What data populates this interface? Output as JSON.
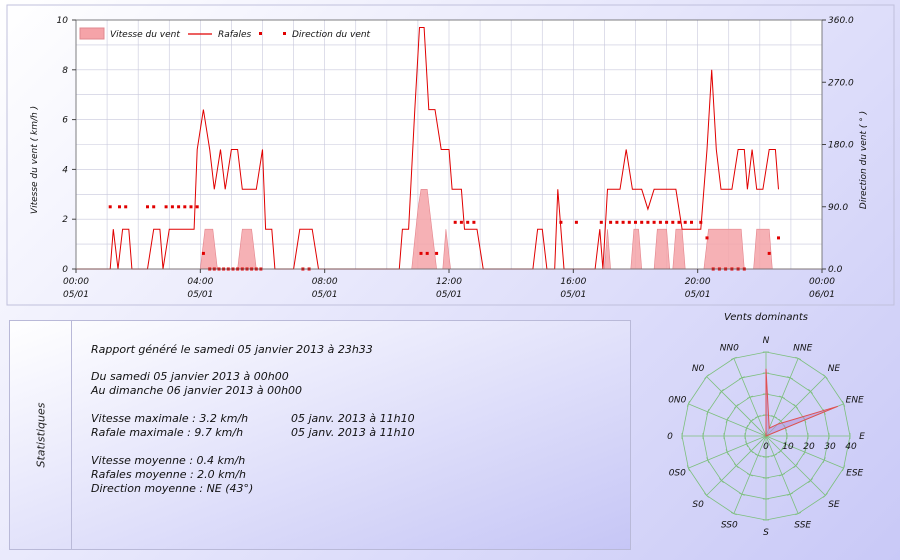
{
  "colors": {
    "gust": "#e00000",
    "speed_fill": "#f5a3a8",
    "dir": "#e00000",
    "rose_fill": "#b090d8",
    "grid": "#c8c8dc"
  },
  "chart_data": [
    {
      "type": "line",
      "legend": {
        "speed": "Vitesse du vent",
        "gust": "Rafales",
        "dir": "Direction du vent",
        "placement": "top-left"
      },
      "ylabel_left": "Vitesse du vent ( km/h )",
      "ylabel_right": "Direction du vent ( ° )",
      "ylim_left": [
        0,
        10
      ],
      "ylim_right": [
        0,
        360
      ],
      "yticks_left": [
        "0",
        "2",
        "4",
        "6",
        "8",
        "10"
      ],
      "yticks_right": [
        "0.0",
        "90.0",
        "180.0",
        "270.0",
        "360.0"
      ],
      "xlim_hours": [
        0,
        24
      ],
      "xticks": [
        {
          "time": "00:00",
          "date": "05/01"
        },
        {
          "time": "04:00",
          "date": "05/01"
        },
        {
          "time": "08:00",
          "date": "05/01"
        },
        {
          "time": "12:00",
          "date": "05/01"
        },
        {
          "time": "16:00",
          "date": "05/01"
        },
        {
          "time": "20:00",
          "date": "05/01"
        },
        {
          "time": "00:00",
          "date": "06/01"
        }
      ],
      "grid": true,
      "series": [
        {
          "name": "Rafales",
          "kind": "line",
          "points": [
            [
              0,
              0
            ],
            [
              1.1,
              0
            ],
            [
              1.2,
              1.6
            ],
            [
              1.35,
              0
            ],
            [
              1.5,
              1.6
            ],
            [
              1.7,
              1.6
            ],
            [
              1.8,
              0
            ],
            [
              2.3,
              0
            ],
            [
              2.5,
              1.6
            ],
            [
              2.7,
              1.6
            ],
            [
              2.8,
              0
            ],
            [
              3,
              1.6
            ],
            [
              3.8,
              1.6
            ],
            [
              3.9,
              4.8
            ],
            [
              4.1,
              6.4
            ],
            [
              4.3,
              4.8
            ],
            [
              4.45,
              3.2
            ],
            [
              4.65,
              4.8
            ],
            [
              4.8,
              3.2
            ],
            [
              5,
              4.8
            ],
            [
              5.2,
              4.8
            ],
            [
              5.35,
              3.2
            ],
            [
              5.8,
              3.2
            ],
            [
              6,
              4.8
            ],
            [
              6.1,
              1.6
            ],
            [
              6.3,
              1.6
            ],
            [
              6.4,
              0
            ],
            [
              7,
              0
            ],
            [
              7.2,
              1.6
            ],
            [
              7.6,
              1.6
            ],
            [
              7.8,
              0
            ],
            [
              10.4,
              0
            ],
            [
              10.5,
              1.6
            ],
            [
              10.7,
              1.6
            ],
            [
              10.9,
              6.4
            ],
            [
              11.05,
              9.7
            ],
            [
              11.2,
              9.7
            ],
            [
              11.35,
              6.4
            ],
            [
              11.55,
              6.4
            ],
            [
              11.75,
              4.8
            ],
            [
              12,
              4.8
            ],
            [
              12.1,
              3.2
            ],
            [
              12.4,
              3.2
            ],
            [
              12.5,
              1.6
            ],
            [
              12.9,
              1.6
            ],
            [
              13.1,
              0
            ],
            [
              14.7,
              0
            ],
            [
              14.85,
              1.6
            ],
            [
              15,
              1.6
            ],
            [
              15.15,
              0
            ],
            [
              15.4,
              0
            ],
            [
              15.5,
              3.2
            ],
            [
              15.7,
              0
            ],
            [
              16.7,
              0
            ],
            [
              16.85,
              1.6
            ],
            [
              16.95,
              0
            ],
            [
              17.1,
              3.2
            ],
            [
              17.5,
              3.2
            ],
            [
              17.7,
              4.8
            ],
            [
              17.9,
              3.2
            ],
            [
              18.2,
              3.2
            ],
            [
              18.4,
              2.4
            ],
            [
              18.6,
              3.2
            ],
            [
              19.3,
              3.2
            ],
            [
              19.5,
              1.6
            ],
            [
              20.1,
              1.6
            ],
            [
              20.3,
              4.8
            ],
            [
              20.45,
              8
            ],
            [
              20.6,
              4.8
            ],
            [
              20.75,
              3.2
            ],
            [
              21.1,
              3.2
            ],
            [
              21.3,
              4.8
            ],
            [
              21.5,
              4.8
            ],
            [
              21.6,
              3.2
            ],
            [
              21.75,
              4.8
            ],
            [
              21.9,
              3.2
            ],
            [
              22.1,
              3.2
            ],
            [
              22.3,
              4.8
            ],
            [
              22.5,
              4.8
            ],
            [
              22.6,
              3.2
            ]
          ]
        },
        {
          "name": "Vitesse du vent",
          "kind": "area",
          "points": [
            [
              0,
              0
            ],
            [
              4,
              0
            ],
            [
              4.15,
              1.6
            ],
            [
              4.4,
              1.6
            ],
            [
              4.55,
              0
            ],
            [
              5.2,
              0
            ],
            [
              5.35,
              1.6
            ],
            [
              5.65,
              1.6
            ],
            [
              5.8,
              0
            ],
            [
              10.8,
              0
            ],
            [
              11,
              2.4
            ],
            [
              11.1,
              3.2
            ],
            [
              11.3,
              3.2
            ],
            [
              11.45,
              1.6
            ],
            [
              11.6,
              0
            ],
            [
              11.8,
              0
            ],
            [
              11.9,
              1.6
            ],
            [
              12.05,
              0
            ],
            [
              17,
              0
            ],
            [
              17.1,
              1.6
            ],
            [
              17.2,
              0
            ],
            [
              17.85,
              0
            ],
            [
              17.95,
              1.6
            ],
            [
              18.1,
              1.6
            ],
            [
              18.2,
              0
            ],
            [
              18.6,
              0
            ],
            [
              18.7,
              1.6
            ],
            [
              19,
              1.6
            ],
            [
              19.1,
              0
            ],
            [
              19.2,
              0
            ],
            [
              19.3,
              1.6
            ],
            [
              19.5,
              1.6
            ],
            [
              19.6,
              0
            ],
            [
              20.2,
              0
            ],
            [
              20.35,
              1.6
            ],
            [
              21.4,
              1.6
            ],
            [
              21.5,
              0
            ],
            [
              21.8,
              0
            ],
            [
              21.9,
              1.6
            ],
            [
              22.3,
              1.6
            ],
            [
              22.4,
              0
            ],
            [
              24,
              0
            ]
          ]
        },
        {
          "name": "Direction du vent",
          "kind": "scatter",
          "points": [
            [
              1.1,
              90
            ],
            [
              1.4,
              90
            ],
            [
              1.6,
              90
            ],
            [
              2.3,
              90
            ],
            [
              2.5,
              90
            ],
            [
              2.9,
              90
            ],
            [
              3.1,
              90
            ],
            [
              3.3,
              90
            ],
            [
              3.5,
              90
            ],
            [
              3.7,
              90
            ],
            [
              3.9,
              90
            ],
            [
              4.1,
              22.5
            ],
            [
              4.3,
              0
            ],
            [
              4.45,
              0
            ],
            [
              4.6,
              0
            ],
            [
              4.75,
              0
            ],
            [
              4.9,
              0
            ],
            [
              5.05,
              0
            ],
            [
              5.2,
              0
            ],
            [
              5.35,
              0
            ],
            [
              5.5,
              0
            ],
            [
              5.65,
              0
            ],
            [
              5.8,
              0
            ],
            [
              5.95,
              0
            ],
            [
              7.3,
              0
            ],
            [
              7.5,
              0
            ],
            [
              11.1,
              22.5
            ],
            [
              11.3,
              22.5
            ],
            [
              11.6,
              22.5
            ],
            [
              12.2,
              67.5
            ],
            [
              12.4,
              67.5
            ],
            [
              12.6,
              67.5
            ],
            [
              12.8,
              67.5
            ],
            [
              15.6,
              67.5
            ],
            [
              16.1,
              67.5
            ],
            [
              16.9,
              67.5
            ],
            [
              17.2,
              67.5
            ],
            [
              17.4,
              67.5
            ],
            [
              17.6,
              67.5
            ],
            [
              17.8,
              67.5
            ],
            [
              18,
              67.5
            ],
            [
              18.2,
              67.5
            ],
            [
              18.4,
              67.5
            ],
            [
              18.6,
              67.5
            ],
            [
              18.8,
              67.5
            ],
            [
              19,
              67.5
            ],
            [
              19.2,
              67.5
            ],
            [
              19.4,
              67.5
            ],
            [
              19.6,
              67.5
            ],
            [
              19.8,
              67.5
            ],
            [
              20.1,
              67.5
            ],
            [
              20.3,
              45
            ],
            [
              20.5,
              0
            ],
            [
              20.7,
              0
            ],
            [
              20.9,
              0
            ],
            [
              21.1,
              0
            ],
            [
              21.3,
              0
            ],
            [
              21.5,
              0
            ],
            [
              22.3,
              22.5
            ],
            [
              22.6,
              45
            ]
          ]
        }
      ]
    },
    {
      "type": "radar",
      "title": "Vents dominants",
      "directions": [
        "N",
        "NNE",
        "NE",
        "ENE",
        "E",
        "ESE",
        "SE",
        "SSE",
        "S",
        "SS0",
        "S0",
        "0S0",
        "0",
        "0N0",
        "N0",
        "NN0"
      ],
      "radial_ticks": [
        "0",
        "10",
        "20",
        "30",
        "40"
      ],
      "rmax": 40,
      "values": [
        32,
        4,
        8,
        37,
        0,
        0,
        0,
        0,
        0,
        0,
        0,
        0,
        0,
        0,
        0,
        0
      ]
    }
  ],
  "stats": {
    "side_title": "Statistiques",
    "generated": "Rapport généré le samedi 05 janvier 2013 à 23h33",
    "period_from": "Du samedi 05 janvier 2013 à 00h00",
    "period_to": "Au dimanche 06 janvier 2013 à 00h00",
    "max_speed": "Vitesse maximale : 3.2 km/h",
    "max_speed_date": "05 janv. 2013 à 11h10",
    "max_gust": "Rafale maximale : 9.7 km/h",
    "max_gust_date": "05 janv. 2013 à 11h10",
    "avg_speed": "Vitesse moyenne : 0.4 km/h",
    "avg_gust": "Rafales moyenne : 2.0 km/h",
    "avg_dir": "Direction moyenne : NE (43°)"
  }
}
